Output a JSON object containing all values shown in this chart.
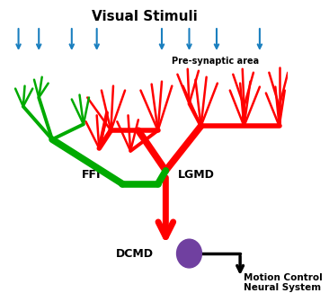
{
  "title": "Visual Stimuli",
  "title_fontsize": 11,
  "background_color": "#ffffff",
  "blue_arrow_color": "#1a7fbf",
  "red_color": "#ff0000",
  "green_color": "#00aa00",
  "black_color": "#000000",
  "purple_color": "#7040a0",
  "label_FFI": "FFI",
  "label_LGMD": "LGMD",
  "label_DCMD": "DCMD",
  "label_motion": "Motion Control\nNeural System",
  "label_presynaptic": "Pre-synaptic area",
  "figsize": [
    3.66,
    3.36
  ],
  "dpi": 100
}
